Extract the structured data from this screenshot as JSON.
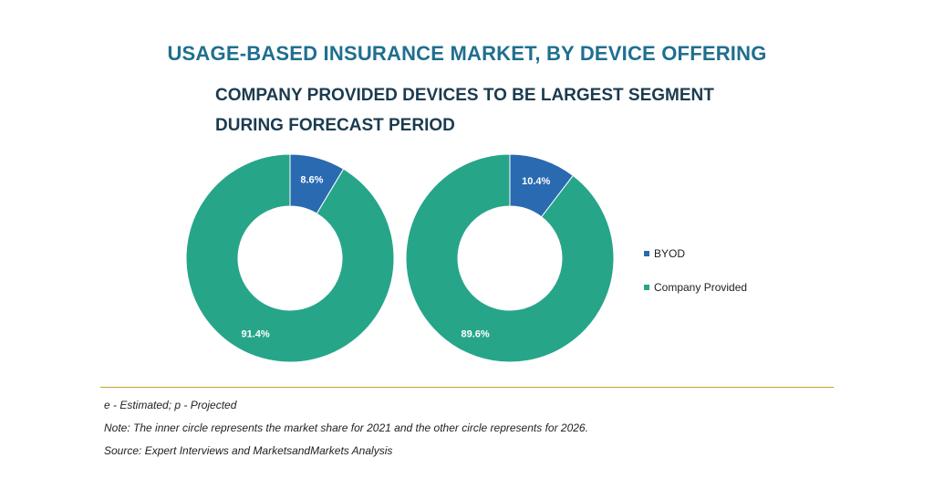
{
  "title": "USAGE-BASED INSURANCE MARKET, BY DEVICE OFFERING",
  "subtitle": "COMPANY PROVIDED DEVICES TO BE LARGEST SEGMENT DURING FORECAST PERIOD",
  "colors": {
    "byod": "#2a6ab0",
    "company_provided": "#27a589",
    "divider": "#c9a227",
    "title": "#1f6f8f"
  },
  "chart_data": [
    {
      "type": "pie",
      "categories": [
        "BYOD",
        "Company Provided"
      ],
      "values": [
        8.6,
        91.4
      ],
      "labels": [
        "8.6%",
        "91.4%"
      ]
    },
    {
      "type": "pie",
      "categories": [
        "BYOD",
        "Company Provided"
      ],
      "values": [
        10.4,
        89.6
      ],
      "labels": [
        "10.4%",
        "89.6%"
      ]
    }
  ],
  "legend": {
    "placement": "right",
    "items": [
      {
        "label": "BYOD"
      },
      {
        "label": "Company Provided"
      }
    ]
  },
  "notes": {
    "estimated": "e - Estimated; p - Projected",
    "note": "Note: The inner circle represents the market share for 2021 and the other circle represents for 2026.",
    "source": "Source: Expert Interviews and MarketsandMarkets Analysis"
  }
}
